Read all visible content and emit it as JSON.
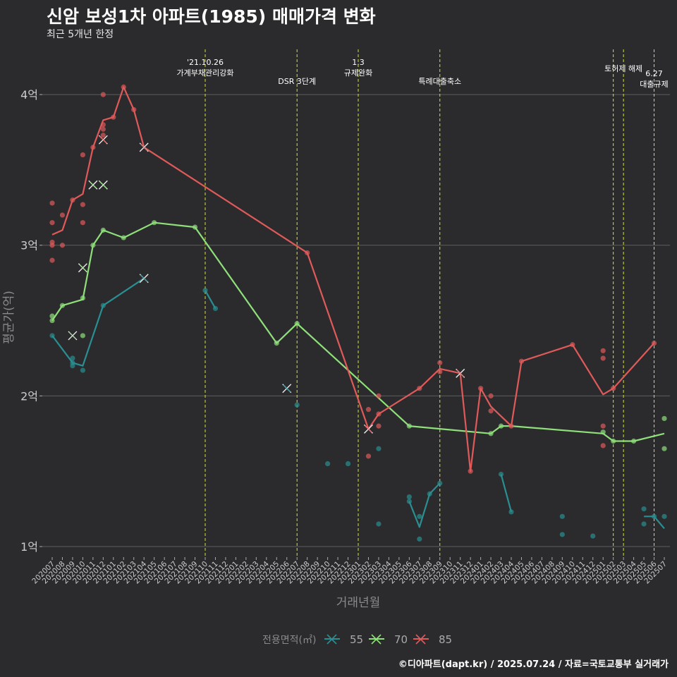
{
  "title": "신암 보성1차 아파트(1985) 매매가격 변화",
  "subtitle": "최근 5개년 한정",
  "caption": "©디아파트(dapt.kr) / 2025.07.24 / 자료=국토교통부 실거래가",
  "chart_data": {
    "type": "line",
    "xlabel": "거래년월",
    "ylabel": "평균가(억)",
    "ylim": [
      0.93,
      4.3
    ],
    "y_ticks": [
      1,
      2,
      3,
      4
    ],
    "y_tick_labels": [
      "1억",
      "2억",
      "3억",
      "4억"
    ],
    "x_categories": [
      "202007",
      "202008",
      "202009",
      "202010",
      "202011",
      "202012",
      "202101",
      "202102",
      "202103",
      "202104",
      "202105",
      "202106",
      "202107",
      "202108",
      "202109",
      "202110",
      "202111",
      "202112",
      "202201",
      "202202",
      "202203",
      "202204",
      "202205",
      "202206",
      "202207",
      "202208",
      "202209",
      "202210",
      "202211",
      "202212",
      "202301",
      "202302",
      "202303",
      "202304",
      "202305",
      "202306",
      "202307",
      "202308",
      "202309",
      "202310",
      "202311",
      "202312",
      "202401",
      "202402",
      "202403",
      "202404",
      "202405",
      "202406",
      "202407",
      "202408",
      "202409",
      "202410",
      "202411",
      "202412",
      "202501",
      "202502",
      "202503",
      "202504",
      "202505",
      "202506",
      "202507"
    ],
    "legend": {
      "title": "전용면적(㎡)",
      "position": "bottom"
    },
    "series": [
      {
        "name": "55",
        "color": "#2a8f92",
        "segments": [
          [
            [
              "202007",
              2.4
            ],
            [
              "202009",
              2.22
            ],
            [
              "202010",
              2.2
            ],
            [
              "202012",
              2.6
            ],
            [
              "202104",
              2.78
            ]
          ],
          [
            [
              "202110",
              2.7
            ],
            [
              "202111",
              2.58
            ]
          ],
          [
            [
              "202306",
              1.3
            ],
            [
              "202307",
              1.13
            ],
            [
              "202308",
              1.35
            ],
            [
              "202309",
              1.42
            ]
          ],
          [
            [
              "202403",
              1.48
            ],
            [
              "202404",
              1.23
            ]
          ],
          [
            [
              "202505",
              1.2
            ],
            [
              "202506",
              1.2
            ],
            [
              "202507",
              1.12
            ]
          ]
        ],
        "points": [
          [
            "202007",
            2.4
          ],
          [
            "202009",
            2.25
          ],
          [
            "202009",
            2.22
          ],
          [
            "202009",
            2.2
          ],
          [
            "202010",
            2.17
          ],
          [
            "202012",
            2.6
          ],
          [
            "202110",
            2.7
          ],
          [
            "202111",
            2.58
          ],
          [
            "202207",
            1.94
          ],
          [
            "202210",
            1.55
          ],
          [
            "202212",
            1.55
          ],
          [
            "202303",
            1.65
          ],
          [
            "202303",
            1.15
          ],
          [
            "202306",
            1.3
          ],
          [
            "202306",
            1.33
          ],
          [
            "202307",
            1.2
          ],
          [
            "202307",
            1.05
          ],
          [
            "202308",
            1.35
          ],
          [
            "202309",
            1.42
          ],
          [
            "202403",
            1.48
          ],
          [
            "202404",
            1.23
          ],
          [
            "202409",
            1.2
          ],
          [
            "202409",
            1.08
          ],
          [
            "202412",
            1.07
          ],
          [
            "202505",
            1.25
          ],
          [
            "202505",
            1.15
          ],
          [
            "202506",
            1.2
          ],
          [
            "202507",
            1.2
          ]
        ],
        "cancelled": [
          [
            "202104",
            2.78
          ],
          [
            "202206",
            2.05
          ]
        ]
      },
      {
        "name": "70",
        "color": "#8fe07a",
        "segments": [
          [
            [
              "202007",
              2.5
            ],
            [
              "202008",
              2.6
            ],
            [
              "202010",
              2.64
            ],
            [
              "202011",
              3.0
            ],
            [
              "202012",
              3.1
            ],
            [
              "202102",
              3.05
            ],
            [
              "202105",
              3.15
            ],
            [
              "202109",
              3.12
            ],
            [
              "202205",
              2.35
            ],
            [
              "202207",
              2.48
            ],
            [
              "202306",
              1.8
            ],
            [
              "202402",
              1.75
            ],
            [
              "202403",
              1.8
            ],
            [
              "202404",
              1.8
            ],
            [
              "202501",
              1.75
            ],
            [
              "202502",
              1.7
            ],
            [
              "202504",
              1.7
            ],
            [
              "202507",
              1.75
            ]
          ]
        ],
        "points": [
          [
            "202007",
            2.53
          ],
          [
            "202007",
            2.5
          ],
          [
            "202008",
            2.6
          ],
          [
            "202010",
            2.4
          ],
          [
            "202010",
            2.65
          ],
          [
            "202011",
            3.0
          ],
          [
            "202012",
            3.1
          ],
          [
            "202102",
            3.05
          ],
          [
            "202105",
            3.15
          ],
          [
            "202109",
            3.12
          ],
          [
            "202205",
            2.35
          ],
          [
            "202207",
            2.48
          ],
          [
            "202306",
            1.8
          ],
          [
            "202402",
            1.75
          ],
          [
            "202403",
            1.8
          ],
          [
            "202501",
            1.76
          ],
          [
            "202502",
            1.7
          ],
          [
            "202504",
            1.7
          ],
          [
            "202507",
            1.85
          ],
          [
            "202507",
            1.65
          ]
        ],
        "cancelled": [
          [
            "202009",
            2.4
          ],
          [
            "202010",
            2.85
          ],
          [
            "202011",
            3.4
          ],
          [
            "202012",
            3.4
          ]
        ]
      },
      {
        "name": "85",
        "color": "#e05a5a",
        "segments": [
          [
            [
              "202007",
              3.07
            ],
            [
              "202008",
              3.1
            ],
            [
              "202009",
              3.3
            ],
            [
              "202010",
              3.34
            ],
            [
              "202011",
              3.65
            ],
            [
              "202012",
              3.83
            ],
            [
              "202101",
              3.85
            ],
            [
              "202102",
              4.05
            ],
            [
              "202103",
              3.9
            ],
            [
              "202104",
              3.65
            ],
            [
              "202208",
              2.95
            ],
            [
              "202302",
              1.78
            ],
            [
              "202303",
              1.88
            ],
            [
              "202307",
              2.05
            ],
            [
              "202309",
              2.18
            ],
            [
              "202311",
              2.15
            ],
            [
              "202312",
              1.5
            ],
            [
              "202401",
              2.05
            ],
            [
              "202402",
              1.93
            ],
            [
              "202404",
              1.8
            ],
            [
              "202405",
              2.23
            ],
            [
              "202410",
              2.34
            ],
            [
              "202501",
              2.01
            ],
            [
              "202502",
              2.05
            ],
            [
              "202506",
              2.35
            ]
          ]
        ],
        "points": [
          [
            "202007",
            3.28
          ],
          [
            "202007",
            3.15
          ],
          [
            "202007",
            3.02
          ],
          [
            "202007",
            3.0
          ],
          [
            "202007",
            2.9
          ],
          [
            "202008",
            3.2
          ],
          [
            "202008",
            3.0
          ],
          [
            "202009",
            3.3
          ],
          [
            "202010",
            3.6
          ],
          [
            "202010",
            3.27
          ],
          [
            "202010",
            3.15
          ],
          [
            "202011",
            3.65
          ],
          [
            "202012",
            4.0
          ],
          [
            "202012",
            3.8
          ],
          [
            "202012",
            3.77
          ],
          [
            "202012",
            3.73
          ],
          [
            "202101",
            3.85
          ],
          [
            "202102",
            4.05
          ],
          [
            "202103",
            3.9
          ],
          [
            "202208",
            2.95
          ],
          [
            "202302",
            1.91
          ],
          [
            "202302",
            1.6
          ],
          [
            "202303",
            1.88
          ],
          [
            "202303",
            1.8
          ],
          [
            "202303",
            2.0
          ],
          [
            "202307",
            2.05
          ],
          [
            "202309",
            2.22
          ],
          [
            "202309",
            2.16
          ],
          [
            "202312",
            1.5
          ],
          [
            "202401",
            2.05
          ],
          [
            "202402",
            2.0
          ],
          [
            "202402",
            1.9
          ],
          [
            "202404",
            1.8
          ],
          [
            "202405",
            2.23
          ],
          [
            "202410",
            2.34
          ],
          [
            "202501",
            2.3
          ],
          [
            "202501",
            2.25
          ],
          [
            "202501",
            1.8
          ],
          [
            "202501",
            1.67
          ],
          [
            "202502",
            2.05
          ],
          [
            "202506",
            2.35
          ]
        ],
        "cancelled": [
          [
            "202012",
            3.7
          ],
          [
            "202104",
            3.65
          ],
          [
            "202302",
            1.78
          ],
          [
            "202311",
            2.15
          ]
        ]
      }
    ],
    "events": [
      {
        "month": "202110",
        "labels": [
          "'21.10.26",
          "가계부채관리강화"
        ]
      },
      {
        "month": "202207",
        "labels": [
          "DSR 3단계"
        ]
      },
      {
        "month": "202301",
        "labels": [
          "1.3",
          "규제완화"
        ]
      },
      {
        "month": "202309",
        "labels": [
          "특례대출축소"
        ]
      },
      {
        "month": "202502",
        "labels": []
      },
      {
        "month": "202503",
        "labels": [
          "토허제 해제"
        ]
      },
      {
        "month": "202506",
        "labels": [
          "6.27",
          "대출규제"
        ]
      }
    ]
  }
}
